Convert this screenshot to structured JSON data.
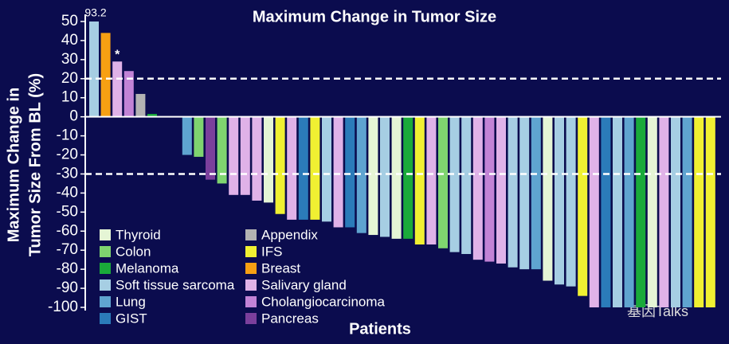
{
  "chart_data": {
    "type": "bar",
    "title": "Maximum Change in Tumor Size",
    "y_label": [
      "Maximum Change in",
      "Tumor Size From BL (%)"
    ],
    "x_label": "Patients",
    "values": [
      93.2,
      44,
      29,
      24,
      12,
      1.5,
      0,
      0,
      -20,
      -21,
      -33,
      -35,
      -41,
      -41,
      -44,
      -45,
      -51,
      -54,
      -54,
      -54,
      -55,
      -58,
      -58,
      -61,
      -62,
      -63,
      -64,
      -64,
      -67,
      -67,
      -69,
      -71,
      -72,
      -75,
      -76,
      -77,
      -79,
      -80,
      -80,
      -86,
      -88,
      -89,
      -94,
      -100,
      -100,
      -100,
      -100,
      -100,
      -100,
      -100,
      -100,
      -100,
      -100,
      -100
    ],
    "value_labels": [
      "93.2",
      null,
      null,
      null,
      null,
      null,
      null,
      null,
      null,
      null,
      null,
      null,
      null,
      null,
      null,
      null,
      null,
      null,
      null,
      null,
      null,
      null,
      null,
      null,
      null,
      null,
      null,
      null,
      null,
      null,
      null,
      null,
      null,
      null,
      null,
      null,
      null,
      null,
      null,
      null,
      null,
      null,
      null,
      null,
      null,
      null,
      null,
      null,
      null,
      null,
      null,
      null,
      null,
      null
    ],
    "colors": [
      "#a6cee3",
      "#f7a013",
      "#e0b2e8",
      "#c283d6",
      "#b3b3b3",
      "#1aaa3a",
      null,
      null,
      "#5fa4d0",
      "#7fd46f",
      "#7b3f9c",
      "#7fd46f",
      "#e0b2e8",
      "#e0b2e8",
      "#e0b2e8",
      "#e5f5d5",
      "#f0f032",
      "#e0b2e8",
      "#2b7bb9",
      "#f0f032",
      "#a6cee3",
      "#e0b2e8",
      "#2b7bb9",
      "#5fa4d0",
      "#e5f5d5",
      "#a6cee3",
      "#e5f5d5",
      "#1aaa3a",
      "#f0f032",
      "#e0b2e8",
      "#7fd46f",
      "#a6cee3",
      "#a6cee3",
      "#e0b2e8",
      "#c283d6",
      "#e0b2e8",
      "#a6cee3",
      "#a6cee3",
      "#5fa4d0",
      "#e5f5d5",
      "#a6cee3",
      "#a6cee3",
      "#f0f032",
      "#e0b2e8",
      "#2b7bb9",
      "#a6cee3",
      "#5fa4d0",
      "#1aaa3a",
      "#e5f5d5",
      "#e0b2e8",
      "#a6cee3",
      "#5fa4d0",
      "#f0f032",
      "#f0f032"
    ],
    "annotations": [
      {
        "text": "*",
        "bar": 2
      }
    ],
    "reference_lines": [
      20,
      -30
    ],
    "ylim": [
      -100,
      50
    ],
    "yticks": [
      50,
      40,
      30,
      20,
      10,
      0,
      -10,
      -20,
      -30,
      -40,
      -50,
      -60,
      -70,
      -80,
      -90,
      -100
    ],
    "legend": [
      {
        "name": "Thyroid",
        "color": "#e5f5d5"
      },
      {
        "name": "Colon",
        "color": "#7fd46f"
      },
      {
        "name": "Melanoma",
        "color": "#1aaa3a"
      },
      {
        "name": "Soft tissue sarcoma",
        "color": "#a6cee3"
      },
      {
        "name": "Lung",
        "color": "#5fa4d0"
      },
      {
        "name": "GIST",
        "color": "#2b7bb9"
      },
      {
        "name": "Appendix",
        "color": "#b3b3b3"
      },
      {
        "name": "IFS",
        "color": "#f0f032"
      },
      {
        "name": "Breast",
        "color": "#f7a013"
      },
      {
        "name": "Salivary gland",
        "color": "#e0b2e8"
      },
      {
        "name": "Cholangiocarcinoma",
        "color": "#c283d6"
      },
      {
        "name": "Pancreas",
        "color": "#7b3f9c"
      }
    ],
    "watermark": "基因Talks"
  }
}
